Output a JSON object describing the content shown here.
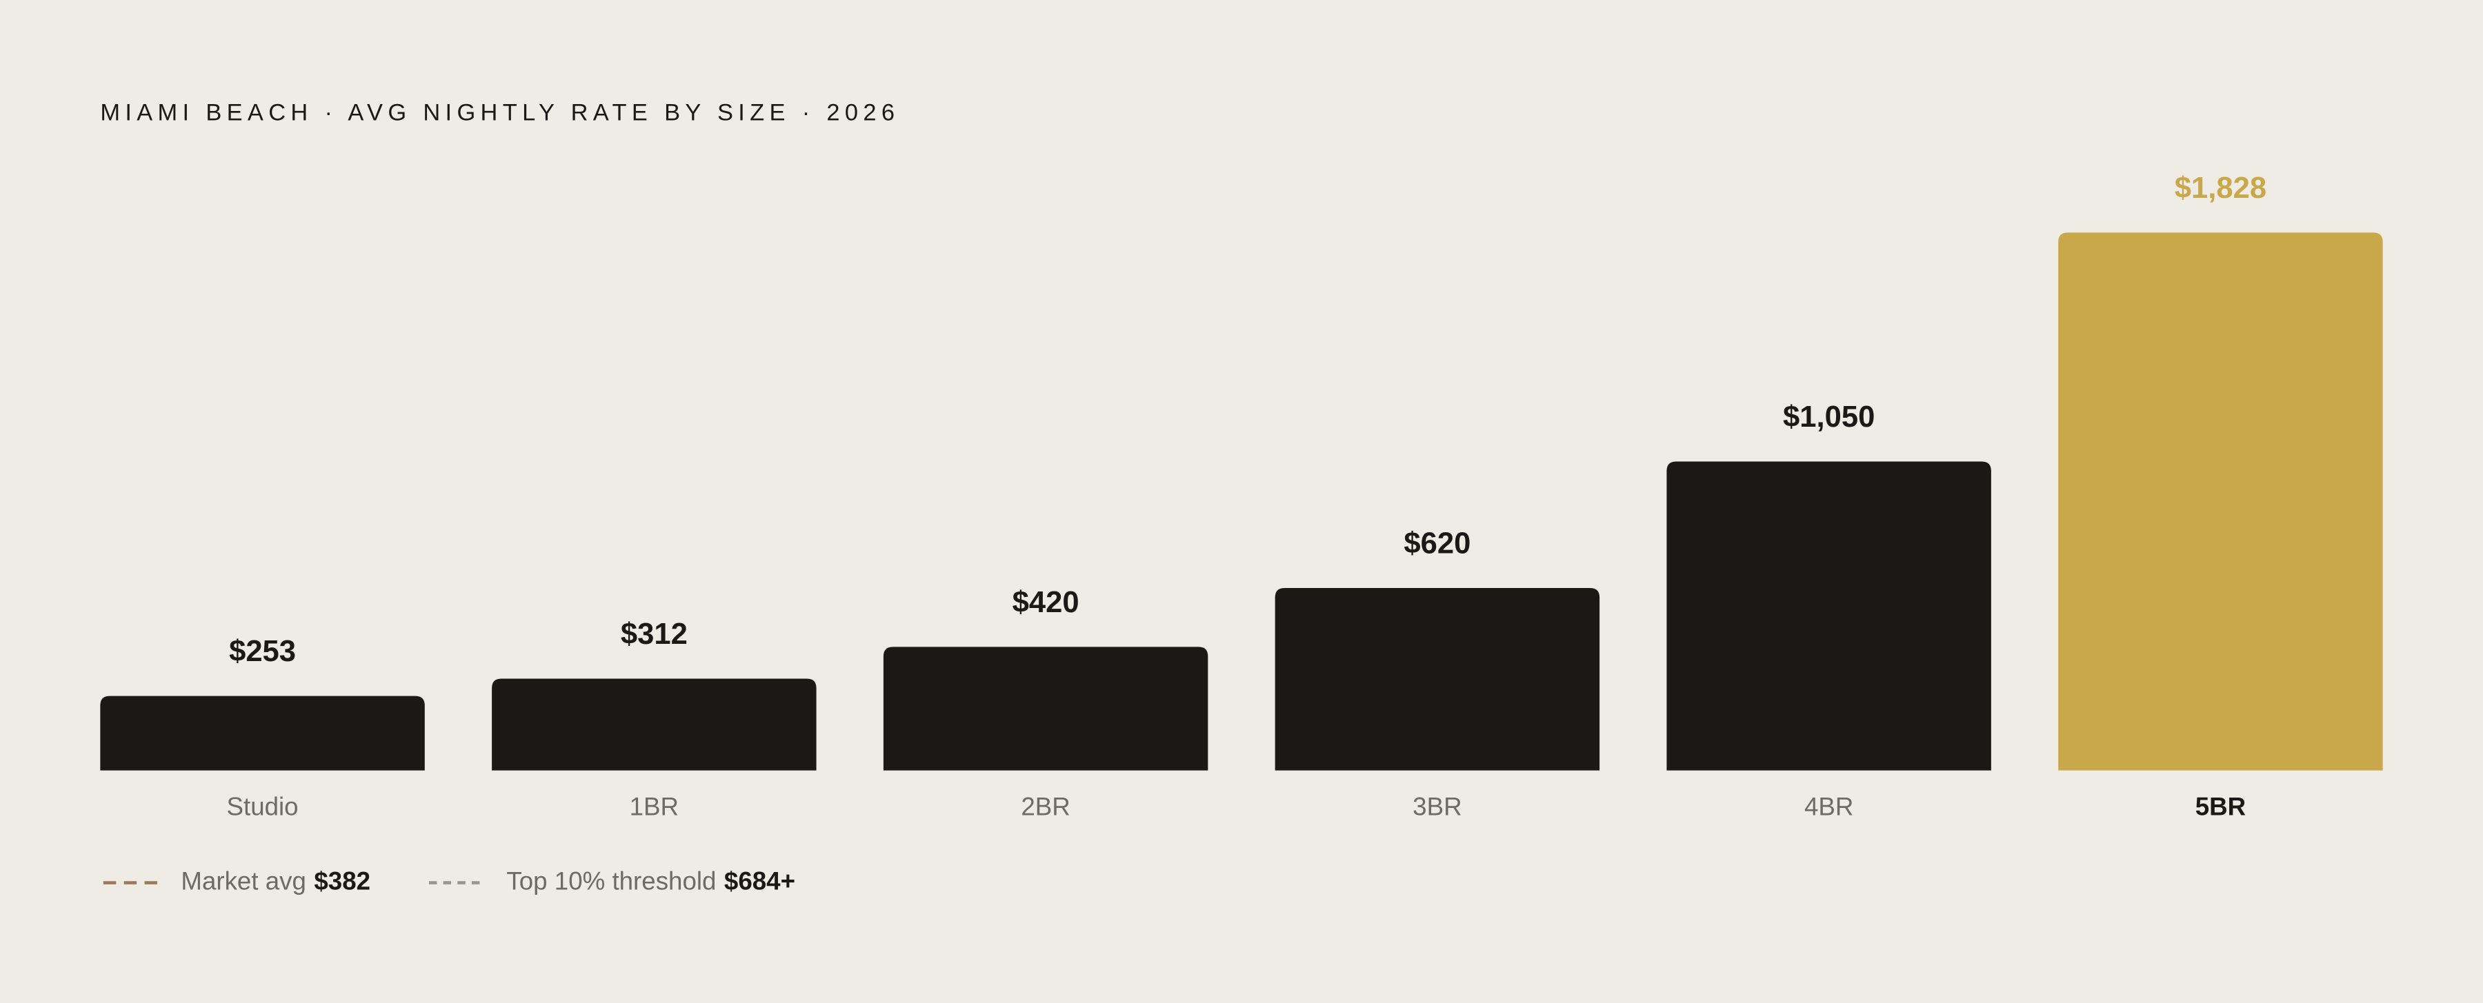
{
  "chart_data": {
    "type": "bar",
    "title": "MIAMI BEACH · AVG NIGHTLY RATE BY SIZE · 2026",
    "categories": [
      "Studio",
      "1BR",
      "2BR",
      "3BR",
      "4BR",
      "5BR"
    ],
    "values": [
      253,
      312,
      420,
      620,
      1050,
      1828
    ],
    "value_labels": [
      "$253",
      "$312",
      "$420",
      "$620",
      "$1,050",
      "$1,828"
    ],
    "color": "#1c1816",
    "highlight_color": "#c9a84c",
    "highlight": 5,
    "ylim": [
      0,
      1828
    ],
    "legend": [
      {
        "label": "Market avg",
        "value": "$382",
        "color": "#9a7a5a"
      },
      {
        "label": "Top 10% threshold",
        "value": "$684+",
        "color": "#9a9590"
      }
    ]
  }
}
